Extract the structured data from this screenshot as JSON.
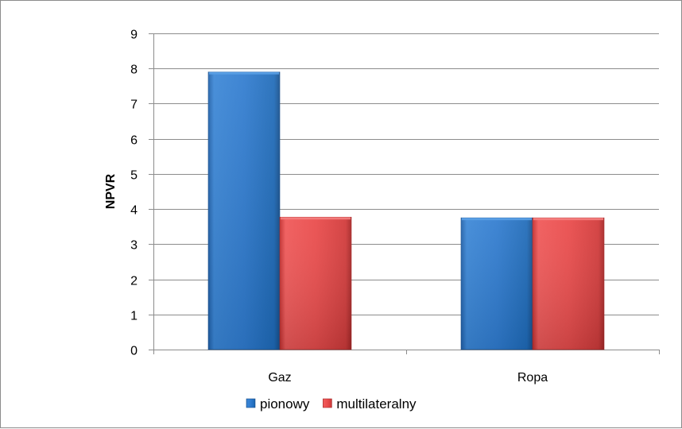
{
  "chart_data": {
    "type": "bar",
    "categories": [
      "Gaz",
      "Ropa"
    ],
    "series": [
      {
        "name": "pionowy",
        "values": [
          7.9,
          3.75
        ],
        "color": "#2e75c8"
      },
      {
        "name": "multilateralny",
        "values": [
          3.77,
          3.75
        ],
        "color": "#e34a4a"
      }
    ],
    "ylabel": "NPVR",
    "xlabel": "",
    "ylim": [
      0,
      9
    ],
    "yticks": [
      "0",
      "1",
      "2",
      "3",
      "4",
      "5",
      "6",
      "7",
      "8",
      "9"
    ],
    "grid": true,
    "legend_position": "bottom"
  }
}
